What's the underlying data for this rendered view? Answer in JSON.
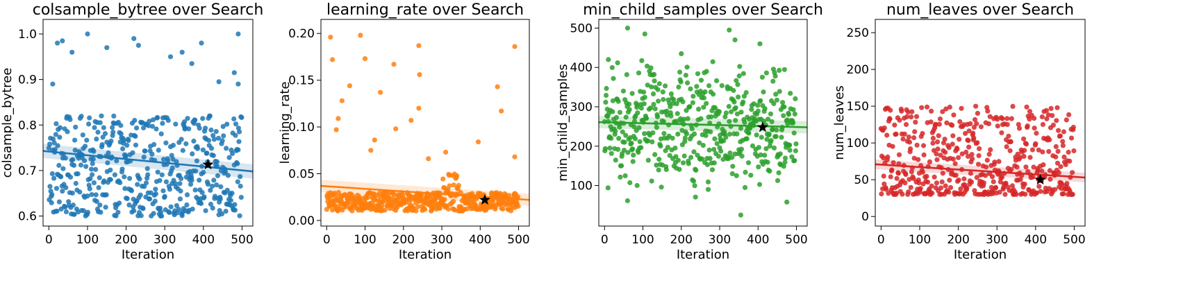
{
  "chart_data": [
    {
      "type": "scatter",
      "title": "colsample_bytree over Search",
      "xlabel": "Iteration",
      "ylabel": "colsample_bytree",
      "color": "#1f77b4",
      "xlim": [
        -15,
        528
      ],
      "ylim": [
        0.578,
        1.032
      ],
      "xticks": [
        0,
        100,
        200,
        300,
        400,
        500
      ],
      "yticks": [
        0.6,
        0.7,
        0.8,
        0.9,
        1.0
      ],
      "ytick_labels": [
        "0.6",
        "0.7",
        "0.8",
        "0.9",
        "1.0"
      ],
      "n_points": 500,
      "y_min": 0.6,
      "y_max": 1.0,
      "trend": {
        "x0": -15,
        "y0": 0.743,
        "x1": 528,
        "y1": 0.698,
        "band": 0.012
      },
      "best": {
        "x": 412,
        "y": 0.713
      },
      "outliers": [
        [
          10,
          0.89
        ],
        [
          22,
          0.98
        ],
        [
          35,
          0.985
        ],
        [
          60,
          0.96
        ],
        [
          100,
          1.0
        ],
        [
          150,
          0.97
        ],
        [
          220,
          0.99
        ],
        [
          232,
          0.975
        ],
        [
          315,
          0.95
        ],
        [
          345,
          0.96
        ],
        [
          370,
          0.935
        ],
        [
          395,
          0.98
        ],
        [
          440,
          0.895
        ],
        [
          490,
          1.0
        ],
        [
          480,
          0.915
        ],
        [
          490,
          0.89
        ]
      ]
    },
    {
      "type": "scatter",
      "title": "learning_rate over Search",
      "xlabel": "Iteration",
      "ylabel": "learning_rate",
      "color": "#ff7f0e",
      "xlim": [
        -15,
        528
      ],
      "ylim": [
        -0.006,
        0.215
      ],
      "xticks": [
        0,
        100,
        200,
        300,
        400,
        500
      ],
      "yticks": [
        0.0,
        0.05,
        0.1,
        0.15,
        0.2
      ],
      "ytick_labels": [
        "0.00",
        "0.05",
        "0.10",
        "0.15",
        "0.20"
      ],
      "n_points": 500,
      "y_min": 0.01,
      "y_max": 0.03,
      "trend": {
        "x0": -15,
        "y0": 0.037,
        "x1": 528,
        "y1": 0.022,
        "band": 0.005
      },
      "best": {
        "x": 412,
        "y": 0.022
      },
      "outliers": [
        [
          10,
          0.196
        ],
        [
          15,
          0.172
        ],
        [
          88,
          0.198
        ],
        [
          100,
          0.173
        ],
        [
          175,
          0.167
        ],
        [
          240,
          0.187
        ],
        [
          242,
          0.156
        ],
        [
          140,
          0.137
        ],
        [
          60,
          0.144
        ],
        [
          40,
          0.128
        ],
        [
          30,
          0.109
        ],
        [
          25,
          0.097
        ],
        [
          240,
          0.12
        ],
        [
          445,
          0.143
        ],
        [
          455,
          0.117
        ],
        [
          490,
          0.186
        ],
        [
          180,
          0.098
        ],
        [
          220,
          0.107
        ],
        [
          125,
          0.086
        ],
        [
          310,
          0.073
        ],
        [
          395,
          0.084
        ],
        [
          490,
          0.068
        ],
        [
          115,
          0.075
        ],
        [
          265,
          0.066
        ]
      ]
    },
    {
      "type": "scatter",
      "title": "min_child_samples over Search",
      "xlabel": "Iteration",
      "ylabel": "min_child_samples",
      "color": "#2ca02c",
      "xlim": [
        -15,
        528
      ],
      "ylim": [
        -3,
        522
      ],
      "xticks": [
        0,
        100,
        200,
        300,
        400,
        500
      ],
      "yticks": [
        100,
        200,
        300,
        400,
        500
      ],
      "ytick_labels": [
        "100",
        "200",
        "300",
        "400",
        "500"
      ],
      "n_points": 500,
      "y_min": 30,
      "y_max": 470,
      "trend": {
        "x0": -15,
        "y0": 261,
        "x1": 528,
        "y1": 248,
        "band": 12
      },
      "best": {
        "x": 412,
        "y": 248
      },
      "outliers": [
        [
          10,
          420
        ],
        [
          60,
          500
        ],
        [
          105,
          485
        ],
        [
          325,
          495
        ],
        [
          200,
          435
        ],
        [
          340,
          470
        ],
        [
          355,
          25
        ],
        [
          475,
          58
        ],
        [
          85,
          100
        ],
        [
          270,
          90
        ],
        [
          405,
          460
        ]
      ]
    },
    {
      "type": "scatter",
      "title": "num_leaves over Search",
      "xlabel": "Iteration",
      "ylabel": "num_leaves",
      "color": "#d62728",
      "xlim": [
        -15,
        528
      ],
      "ylim": [
        -13,
        268
      ],
      "xticks": [
        0,
        100,
        200,
        300,
        400,
        500
      ],
      "yticks": [
        0,
        50,
        100,
        150,
        200,
        250
      ],
      "ytick_labels": [
        "0",
        "50",
        "100",
        "150",
        "200",
        "250"
      ],
      "n_points": 500,
      "y_min": 30,
      "y_max": 150,
      "trend": {
        "x0": -15,
        "y0": 71,
        "x1": 528,
        "y1": 53,
        "band": 5
      },
      "best": {
        "x": 412,
        "y": 50
      },
      "outliers": []
    }
  ]
}
